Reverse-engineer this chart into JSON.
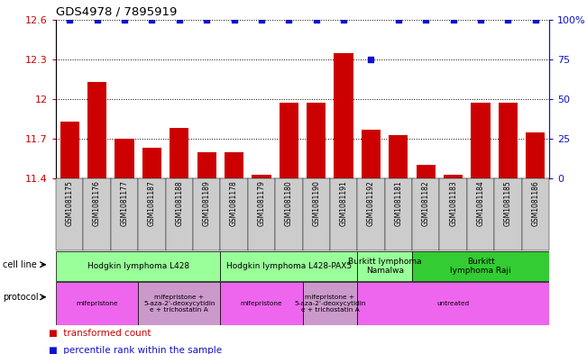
{
  "title": "GDS4978 / 7895919",
  "samples": [
    "GSM1081175",
    "GSM1081176",
    "GSM1081177",
    "GSM1081187",
    "GSM1081188",
    "GSM1081189",
    "GSM1081178",
    "GSM1081179",
    "GSM1081180",
    "GSM1081190",
    "GSM1081191",
    "GSM1081192",
    "GSM1081181",
    "GSM1081182",
    "GSM1081183",
    "GSM1081184",
    "GSM1081185",
    "GSM1081186"
  ],
  "bar_values": [
    11.83,
    12.13,
    11.7,
    11.63,
    11.78,
    11.6,
    11.6,
    11.43,
    11.97,
    11.97,
    12.35,
    11.77,
    11.73,
    11.5,
    11.43,
    11.97,
    11.97,
    11.75
  ],
  "dot_values": [
    100,
    100,
    100,
    100,
    100,
    100,
    100,
    100,
    100,
    100,
    100,
    75,
    100,
    100,
    100,
    100,
    100,
    100
  ],
  "ylim_left": [
    11.4,
    12.6
  ],
  "yticks_left": [
    11.4,
    11.7,
    12.0,
    12.3,
    12.6
  ],
  "ytick_labels_left": [
    "11.4",
    "11.7",
    "12",
    "12.3",
    "12.6"
  ],
  "ylim_right": [
    0,
    100
  ],
  "yticks_right": [
    0,
    25,
    50,
    75,
    100
  ],
  "ytick_labels_right": [
    "0",
    "25",
    "50",
    "75",
    "100%"
  ],
  "bar_color": "#cc0000",
  "dot_color": "#1111cc",
  "plot_bg": "#ffffff",
  "xtick_bg": "#dddddd",
  "cell_line_groups": [
    {
      "label": "Hodgkin lymphoma L428",
      "start": 0,
      "end": 5,
      "color": "#99ff99"
    },
    {
      "label": "Hodgkin lymphoma L428-PAX5",
      "start": 6,
      "end": 10,
      "color": "#99ff99"
    },
    {
      "label": "Burkitt lymphoma\nNamalwa",
      "start": 11,
      "end": 12,
      "color": "#99ff99"
    },
    {
      "label": "Burkitt\nlymphoma Raji",
      "start": 13,
      "end": 17,
      "color": "#33cc33"
    }
  ],
  "protocol_groups": [
    {
      "label": "mifepristone",
      "start": 0,
      "end": 2,
      "color": "#ee66ee"
    },
    {
      "label": "mifepristone +\n5-aza-2'-deoxycytidin\ne + trichostatin A",
      "start": 3,
      "end": 5,
      "color": "#cc99cc"
    },
    {
      "label": "mifepristone",
      "start": 6,
      "end": 8,
      "color": "#ee66ee"
    },
    {
      "label": "mifepristone +\n5-aza-2'-deoxycytidin\ne + trichostatin A",
      "start": 9,
      "end": 10,
      "color": "#cc99cc"
    },
    {
      "label": "untreated",
      "start": 11,
      "end": 17,
      "color": "#ee66ee"
    }
  ],
  "legend_red": "transformed count",
  "legend_blue": "percentile rank within the sample",
  "left_axis_color": "#cc0000",
  "right_axis_color": "#1111cc"
}
